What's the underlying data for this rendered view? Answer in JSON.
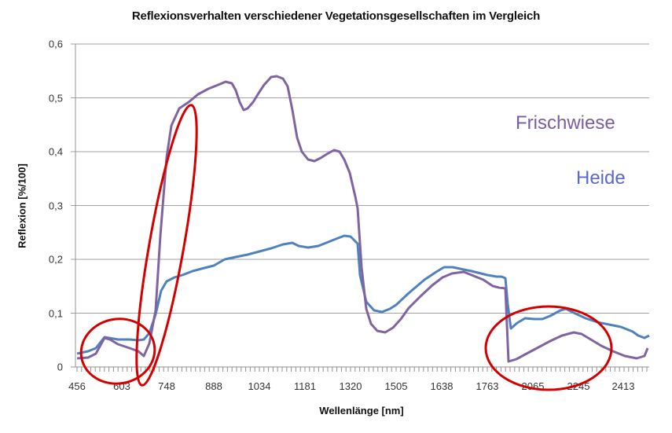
{
  "chart_data": {
    "type": "line",
    "title": "Reflexionsverhalten verschiedener Vegetationsgesellschaften im Vergleich",
    "xlabel": "Wellenlänge [nm]",
    "ylabel": "Reflexion [%/100]",
    "ylim": [
      0,
      0.6
    ],
    "grid": "horizontal",
    "y_ticks": [
      "0",
      "0,1",
      "0,2",
      "0,3",
      "0,4",
      "0,5",
      "0,6"
    ],
    "x_tick_labels": [
      "456",
      "603",
      "748",
      "888",
      "1034",
      "1181",
      "1320",
      "1505",
      "1638",
      "1763",
      "2065",
      "2245",
      "2413"
    ],
    "legend": [
      {
        "name": "Frischwiese",
        "color": "#7b5ea0"
      },
      {
        "name": "Heide",
        "color": "#4a7fc0"
      }
    ],
    "series": [
      {
        "name": "Frischwiese",
        "color": "#8064a2",
        "x": [
          456,
          500,
          540,
          603,
          650,
          690,
          710,
          730,
          748,
          780,
          820,
          888,
          920,
          960,
          1000,
          1034,
          1070,
          1100,
          1130,
          1160,
          1181,
          1220,
          1260,
          1300,
          1320,
          1340,
          1380,
          1420,
          1505,
          1560,
          1638,
          1700,
          1763,
          1800,
          1820,
          1850,
          2065,
          2200,
          2245,
          2300,
          2413,
          2450,
          2480
        ],
        "values": [
          0.015,
          0.02,
          0.055,
          0.04,
          0.03,
          0.02,
          0.1,
          0.3,
          0.43,
          0.49,
          0.51,
          0.527,
          0.49,
          0.48,
          0.52,
          0.54,
          0.535,
          0.52,
          0.43,
          0.39,
          0.38,
          0.39,
          0.403,
          0.36,
          0.32,
          0.1,
          0.06,
          0.06,
          0.1,
          0.14,
          0.178,
          0.17,
          0.15,
          0.145,
          0.145,
          0.01,
          0.04,
          0.065,
          0.07,
          0.05,
          0.025,
          0.015,
          0.03
        ]
      },
      {
        "name": "Heide",
        "color": "#4f81bd",
        "x": [
          456,
          500,
          540,
          603,
          650,
          690,
          710,
          730,
          748,
          780,
          820,
          888,
          920,
          960,
          1000,
          1034,
          1070,
          1100,
          1130,
          1160,
          1181,
          1220,
          1260,
          1300,
          1320,
          1340,
          1380,
          1420,
          1505,
          1560,
          1638,
          1700,
          1763,
          1800,
          1820,
          1850,
          2065,
          2200,
          2245,
          2300,
          2413,
          2450,
          2480
        ],
        "values": [
          0.025,
          0.03,
          0.055,
          0.052,
          0.05,
          0.05,
          0.08,
          0.14,
          0.165,
          0.175,
          0.185,
          0.2,
          0.2,
          0.21,
          0.22,
          0.225,
          0.23,
          0.22,
          0.22,
          0.225,
          0.23,
          0.24,
          0.242,
          0.23,
          0.16,
          0.11,
          0.1,
          0.11,
          0.135,
          0.16,
          0.187,
          0.18,
          0.17,
          0.167,
          0.165,
          0.065,
          0.09,
          0.1,
          0.11,
          0.09,
          0.075,
          0.06,
          0.055
        ]
      }
    ],
    "annotations": [
      "red circle around 456–700 nm region",
      "red ellipse around steep rise near 700–750 nm (red edge)",
      "red ellipse around 1850–2413 nm region"
    ]
  }
}
